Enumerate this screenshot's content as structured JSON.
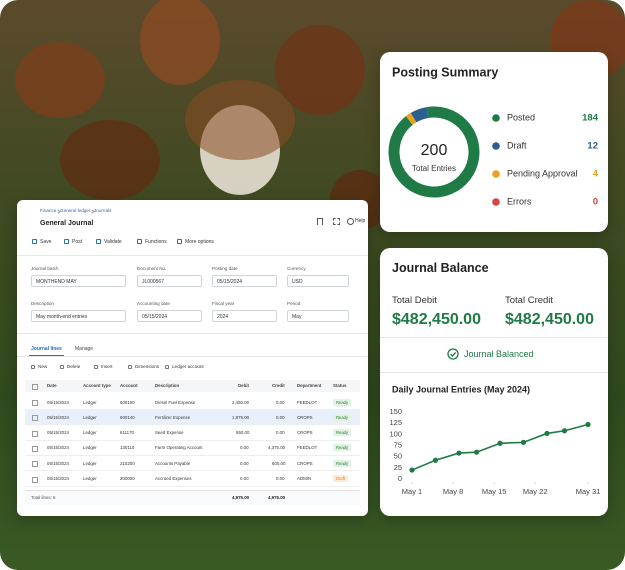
{
  "journal": {
    "breadcrumb": [
      "Finance",
      "General ledger",
      "Journals"
    ],
    "title": "General Journal",
    "help": "Help",
    "toolbar": [
      "Save",
      "Post",
      "Validate",
      "Functions",
      "More options"
    ],
    "fields": [
      {
        "label": "Journal batch",
        "value": "MONTHEND MAY"
      },
      {
        "label": "Document No.",
        "value": "JL000567"
      },
      {
        "label": "Posting date",
        "value": "05/15/2024"
      },
      {
        "label": "Currency",
        "value": "USD"
      },
      {
        "label": "Description",
        "value": "May month-end entries"
      },
      {
        "label": "Accounting date",
        "value": "05/15/2024"
      },
      {
        "label": "Fiscal year",
        "value": "2024"
      },
      {
        "label": "Period",
        "value": "May"
      }
    ],
    "tabs": [
      "Journal lines",
      "Manage"
    ],
    "line_actions": [
      "New",
      "Delete",
      "Insert",
      "Dimensions",
      "Ledger account"
    ],
    "table": {
      "columns": [
        "Date",
        "Account type",
        "Account",
        "Description",
        "Debit",
        "Credit",
        "Department",
        "Status"
      ],
      "rows": [
        [
          "05/15/2024",
          "Ledger",
          "600100",
          "Diesel Fuel Expense",
          "2,450.00",
          "0.00",
          "FEEDLOT",
          "Ready"
        ],
        [
          "05/15/2024",
          "Ledger",
          "600140",
          "Fertilizer Expense",
          "1,875.00",
          "0.00",
          "CROPS",
          "Ready"
        ],
        [
          "05/15/2024",
          "Ledger",
          "611170",
          "Seed Expense",
          "650.00",
          "0.00",
          "CROPS",
          "Ready"
        ],
        [
          "05/15/2024",
          "Ledger",
          "130110",
          "Farm Operating Account",
          "0.00",
          "4,375.00",
          "FEEDLOT",
          "Ready"
        ],
        [
          "05/15/2024",
          "Ledger",
          "210200",
          "Accounts Payable",
          "0.00",
          "600.00",
          "CROPS",
          "Ready"
        ],
        [
          "05/15/2024",
          "Ledger",
          "200000",
          "Accrued Expenses",
          "0.00",
          "0.00",
          "ADMIN",
          "Draft"
        ]
      ],
      "selected_row": 1,
      "badge_colors": {
        "Ready": [
          "#e2f3e5",
          "#2e7d32"
        ],
        "Draft": [
          "#fdebd6",
          "#d9822b"
        ]
      }
    },
    "footer": {
      "total_lines": "Total lines: 6",
      "debit_total": "4,975.00",
      "credit_total": "4,975.00"
    }
  },
  "balance": {
    "title": "Journal Balance",
    "debit_label": "Total Debit",
    "debit": "$482,450.00",
    "credit_label": "Total Credit",
    "credit": "$482,450.00",
    "status": "Journal Balanced"
  },
  "chart_data": [
    {
      "type": "pie",
      "title": "Posting Summary",
      "categories": [
        "Posted",
        "Draft",
        "Pending Approval",
        "Errors"
      ],
      "values": [
        184,
        12,
        4,
        0
      ],
      "colors": [
        "#1f7a45",
        "#2b5f8e",
        "#e8a21c",
        "#d64545"
      ],
      "center_value": 200,
      "center_label": "Total Entries"
    },
    {
      "type": "line",
      "title": "Daily Journal Entries (May 2024)",
      "x": [
        1,
        5,
        9,
        12,
        16,
        20,
        24,
        27,
        31
      ],
      "values": [
        20,
        42,
        58,
        60,
        80,
        82,
        102,
        108,
        122
      ],
      "color": "#1f7a45",
      "xlim": [
        1,
        31
      ],
      "xticks": [
        {
          "value": 1,
          "label": "May 1"
        },
        {
          "value": 8,
          "label": "May 8"
        },
        {
          "value": 15,
          "label": "May 15"
        },
        {
          "value": 22,
          "label": "May 22"
        },
        {
          "value": 31,
          "label": "May 31"
        }
      ],
      "ylim": [
        0,
        150
      ],
      "yticks": [
        0,
        25,
        50,
        75,
        100,
        125,
        150
      ]
    }
  ]
}
